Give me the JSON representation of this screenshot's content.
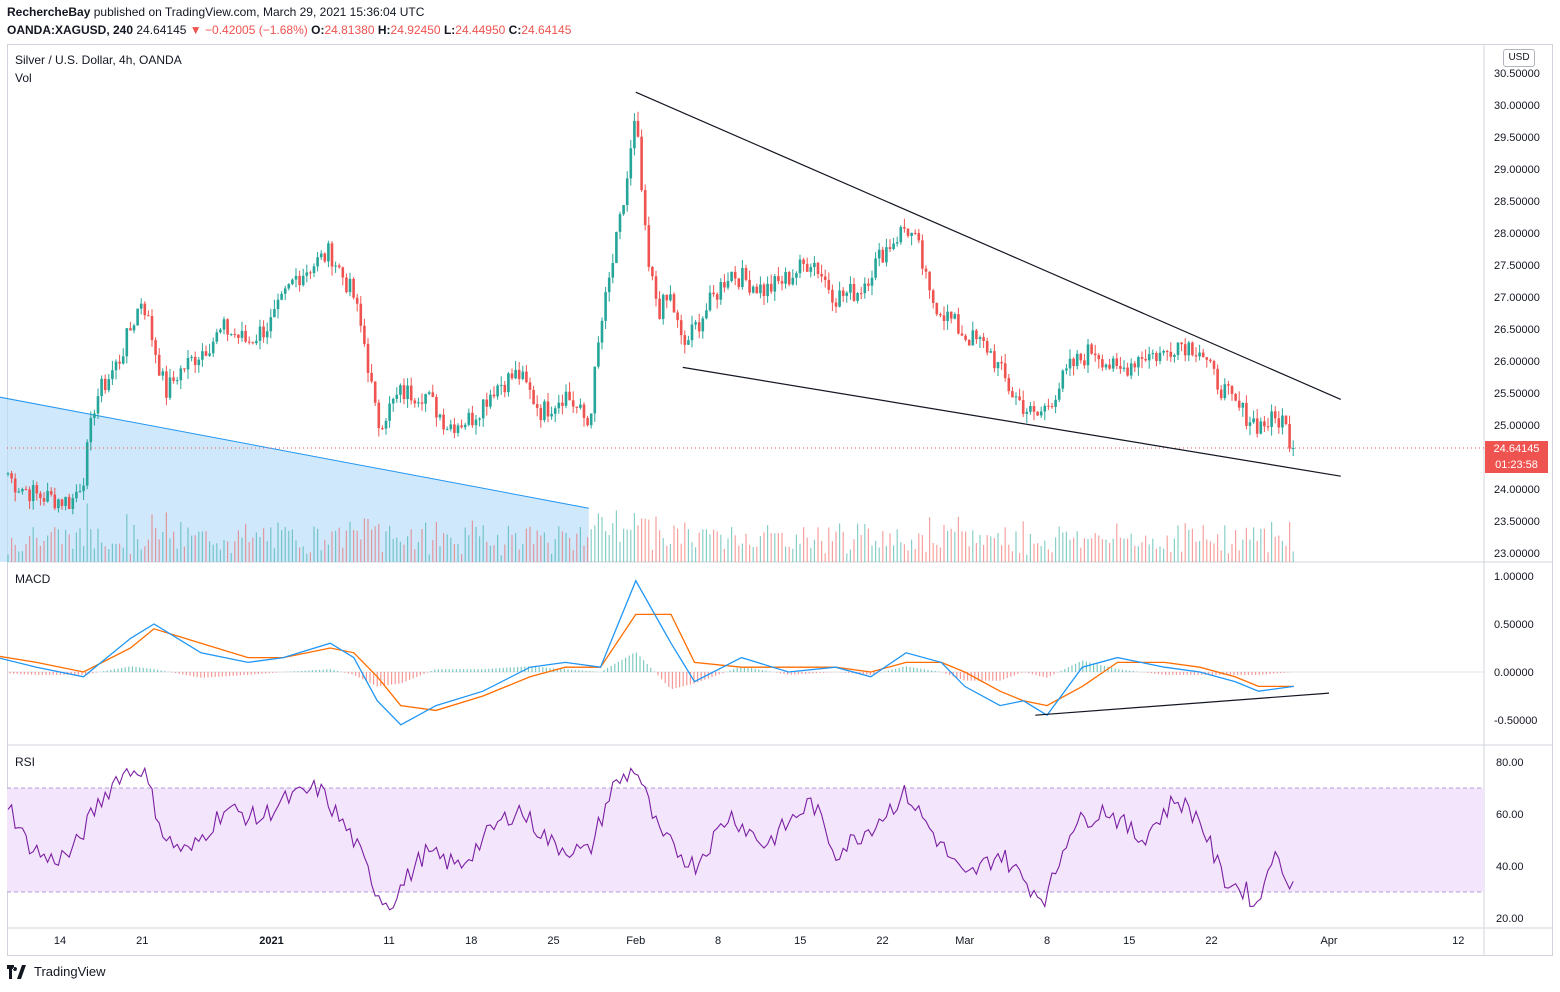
{
  "header": {
    "publisher": "RechercheBay",
    "published_text": "published on TradingView.com, March 29, 2021 15:36:04 UTC",
    "symbol": "OANDA:XAGUSD, 240",
    "last": "24.64145",
    "change": "−0.42005 (−1.68%)",
    "o_label": "O:",
    "o_value": "24.81380",
    "h_label": "H:",
    "h_value": "24.92450",
    "l_label": "L:",
    "l_value": "24.44950",
    "c_label": "C:",
    "c_value": "24.64145"
  },
  "panes": {
    "main_title": "Silver / U.S. Dollar, 4h, OANDA",
    "vol_label": "Vol",
    "macd_label": "MACD",
    "rsi_label": "RSI"
  },
  "currency_button": "USD",
  "price_tag": {
    "price": "24.64145",
    "countdown": "01:23:58"
  },
  "footer": {
    "brand": "TradingView"
  },
  "colors": {
    "up": "#26a69a",
    "down": "#ef5350",
    "macd": "#2196f3",
    "signal": "#ff6d00",
    "rsi": "#7b1fa2",
    "rsi_band": "#f3e5fc",
    "wedge_fill": "#bbdefb",
    "wedge_line": "#2196f3"
  },
  "chart_data": [
    {
      "type": "candlestick",
      "title": "Silver / U.S. Dollar, 4h, OANDA",
      "x_ticks": [
        "14",
        "21",
        "2021",
        "11",
        "18",
        "25",
        "Feb",
        "8",
        "15",
        "22",
        "Mar",
        "8",
        "15",
        "22",
        "Apr",
        "12"
      ],
      "y_ticks": [
        "30.50000",
        "30.00000",
        "29.50000",
        "29.00000",
        "28.50000",
        "28.00000",
        "27.50000",
        "27.00000",
        "26.50000",
        "26.00000",
        "25.50000",
        "25.00000",
        "24.50000",
        "24.00000",
        "23.50000",
        "23.00000"
      ],
      "ylim": [
        22.87,
        30.57
      ],
      "price_path": [
        [
          "Dec 7",
          24.3
        ],
        [
          "Dec 8",
          24.8
        ],
        [
          "Dec 10",
          24.1
        ],
        [
          "Dec 12",
          23.9
        ],
        [
          "Dec 15",
          23.8
        ],
        [
          "Dec 16",
          24.2
        ],
        [
          "Dec 17",
          25.4
        ],
        [
          "Dec 19",
          26.0
        ],
        [
          "Dec 21",
          27.0
        ],
        [
          "Dec 23",
          25.5
        ],
        [
          "Dec 24",
          25.8
        ],
        [
          "Dec 28",
          26.5
        ],
        [
          "Dec 30",
          26.3
        ],
        [
          "Jan 1",
          26.6
        ],
        [
          "Jan 3",
          27.3
        ],
        [
          "Jan 6",
          27.7
        ],
        [
          "Jan 8",
          27.0
        ],
        [
          "Jan 9",
          26.2
        ],
        [
          "Jan 10",
          25.0
        ],
        [
          "Jan 12",
          25.5
        ],
        [
          "Jan 14",
          25.5
        ],
        [
          "Jan 16",
          25.0
        ],
        [
          "Jan 18",
          25.1
        ],
        [
          "Jan 20",
          25.6
        ],
        [
          "Jan 22",
          25.8
        ],
        [
          "Jan 24",
          25.2
        ],
        [
          "Jan 26",
          25.5
        ],
        [
          "Jan 28",
          25.0
        ],
        [
          "Jan 29",
          26.5
        ],
        [
          "Jan 31",
          28.5
        ],
        [
          "Feb 1",
          29.8
        ],
        [
          "Feb 2",
          27.5
        ],
        [
          "Feb 3",
          26.8
        ],
        [
          "Feb 4",
          27.0
        ],
        [
          "Feb 5",
          26.2
        ],
        [
          "Feb 7",
          26.8
        ],
        [
          "Feb 9",
          27.4
        ],
        [
          "Feb 10",
          27.3
        ],
        [
          "Feb 12",
          27.1
        ],
        [
          "Feb 14",
          27.3
        ],
        [
          "Feb 16",
          27.6
        ],
        [
          "Feb 18",
          27.0
        ],
        [
          "Feb 20",
          27.1
        ],
        [
          "Feb 22",
          27.7
        ],
        [
          "Feb 24",
          28.1
        ],
        [
          "Feb 25",
          27.8
        ],
        [
          "Feb 26",
          27.0
        ],
        [
          "Feb 28",
          26.6
        ],
        [
          "Mar 1",
          26.4
        ],
        [
          "Mar 3",
          26.2
        ],
        [
          "Mar 5",
          25.5
        ],
        [
          "Mar 7",
          25.1
        ],
        [
          "Mar 8",
          25.3
        ],
        [
          "Mar 10",
          25.9
        ],
        [
          "Mar 12",
          26.2
        ],
        [
          "Mar 14",
          25.8
        ],
        [
          "Mar 16",
          26.1
        ],
        [
          "Mar 18",
          26.1
        ],
        [
          "Mar 19",
          26.3
        ],
        [
          "Mar 21",
          26.2
        ],
        [
          "Mar 22",
          25.8
        ],
        [
          "Mar 24",
          25.3
        ],
        [
          "Mar 26",
          25.0
        ],
        [
          "Mar 28",
          25.1
        ],
        [
          "Mar 29",
          24.64
        ]
      ],
      "last_price": 24.64145,
      "trendlines": [
        {
          "name": "upper wedge",
          "from": [
            "Feb 1",
            30.2
          ],
          "to": [
            "Apr 2",
            25.4
          ]
        },
        {
          "name": "lower wedge",
          "from": [
            "Feb 5",
            25.9
          ],
          "to": [
            "Apr 2",
            24.2
          ]
        },
        {
          "name": "prior resistance",
          "from": [
            "Dec 7",
            25.5
          ],
          "to": [
            "Jan 28",
            23.7
          ]
        }
      ]
    },
    {
      "type": "line",
      "title": "MACD",
      "y_ticks": [
        "1.00000",
        "0.50000",
        "0.00000",
        "-0.50000"
      ],
      "ylim": [
        -0.62,
        1.08
      ],
      "series": [
        {
          "values": [
            [
              "Dec 7",
              0.2
            ],
            [
              "Dec 12",
              0.05
            ],
            [
              "Dec 16",
              -0.05
            ],
            [
              "Dec 20",
              0.35
            ],
            [
              "Dec 22",
              0.5
            ],
            [
              "Dec 26",
              0.2
            ],
            [
              "Dec 30",
              0.1
            ],
            [
              "Jan 2",
              0.15
            ],
            [
              "Jan 6",
              0.3
            ],
            [
              "Jan 8",
              0.15
            ],
            [
              "Jan 10",
              -0.3
            ],
            [
              "Jan 12",
              -0.55
            ],
            [
              "Jan 15",
              -0.35
            ],
            [
              "Jan 19",
              -0.2
            ],
            [
              "Jan 23",
              0.05
            ],
            [
              "Jan 26",
              0.1
            ],
            [
              "Jan 29",
              0.05
            ],
            [
              "Feb 1",
              0.95
            ],
            [
              "Feb 4",
              0.3
            ],
            [
              "Feb 6",
              -0.1
            ],
            [
              "Feb 10",
              0.15
            ],
            [
              "Feb 14",
              0.0
            ],
            [
              "Feb 18",
              0.05
            ],
            [
              "Feb 21",
              -0.05
            ],
            [
              "Feb 24",
              0.2
            ],
            [
              "Feb 27",
              0.1
            ],
            [
              "Mar 1",
              -0.15
            ],
            [
              "Mar 4",
              -0.35
            ],
            [
              "Mar 6",
              -0.3
            ],
            [
              "Mar 8",
              -0.45
            ],
            [
              "Mar 11",
              0.05
            ],
            [
              "Mar 14",
              0.15
            ],
            [
              "Mar 18",
              0.05
            ],
            [
              "Mar 21",
              0.0
            ],
            [
              "Mar 24",
              -0.1
            ],
            [
              "Mar 26",
              -0.2
            ],
            [
              "Mar 29",
              -0.15
            ]
          ]
        },
        {
          "values": [
            [
              "Dec 7",
              0.2
            ],
            [
              "Dec 12",
              0.1
            ],
            [
              "Dec 16",
              0.0
            ],
            [
              "Dec 20",
              0.25
            ],
            [
              "Dec 22",
              0.45
            ],
            [
              "Dec 26",
              0.3
            ],
            [
              "Dec 30",
              0.15
            ],
            [
              "Jan 2",
              0.15
            ],
            [
              "Jan 6",
              0.25
            ],
            [
              "Jan 8",
              0.2
            ],
            [
              "Jan 10",
              -0.05
            ],
            [
              "Jan 12",
              -0.35
            ],
            [
              "Jan 15",
              -0.4
            ],
            [
              "Jan 19",
              -0.25
            ],
            [
              "Jan 23",
              -0.05
            ],
            [
              "Jan 26",
              0.05
            ],
            [
              "Jan 29",
              0.05
            ],
            [
              "Feb 1",
              0.6
            ],
            [
              "Feb 4",
              0.6
            ],
            [
              "Feb 6",
              0.1
            ],
            [
              "Feb 10",
              0.05
            ],
            [
              "Feb 14",
              0.05
            ],
            [
              "Feb 18",
              0.05
            ],
            [
              "Feb 21",
              0.0
            ],
            [
              "Feb 24",
              0.1
            ],
            [
              "Feb 27",
              0.1
            ],
            [
              "Mar 1",
              0.0
            ],
            [
              "Mar 4",
              -0.2
            ],
            [
              "Mar 6",
              -0.3
            ],
            [
              "Mar 8",
              -0.35
            ],
            [
              "Mar 11",
              -0.15
            ],
            [
              "Mar 14",
              0.1
            ],
            [
              "Mar 18",
              0.1
            ],
            [
              "Mar 21",
              0.05
            ],
            [
              "Mar 24",
              -0.05
            ],
            [
              "Mar 26",
              -0.15
            ],
            [
              "Mar 29",
              -0.15
            ]
          ]
        }
      ],
      "trendline": {
        "from": [
          "Mar 7",
          -0.45
        ],
        "to": [
          "Apr 1",
          -0.22
        ]
      }
    },
    {
      "type": "line",
      "title": "RSI",
      "y_ticks": [
        "80.00",
        "60.00",
        "40.00",
        "20.00"
      ],
      "ylim": [
        15.1,
        83.3
      ],
      "band": [
        30,
        70
      ],
      "series": [
        {
          "values": [
            [
              "Dec 7",
              58
            ],
            [
              "Dec 9",
              70
            ],
            [
              "Dec 11",
              50
            ],
            [
              "Dec 13",
              42
            ],
            [
              "Dec 15",
              45
            ],
            [
              "Dec 17",
              62
            ],
            [
              "Dec 19",
              75
            ],
            [
              "Dec 21",
              78
            ],
            [
              "Dec 23",
              50
            ],
            [
              "Dec 25",
              45
            ],
            [
              "Dec 28",
              62
            ],
            [
              "Dec 31",
              58
            ],
            [
              "Jan 2",
              65
            ],
            [
              "Jan 5",
              70
            ],
            [
              "Jan 8",
              50
            ],
            [
              "Jan 10",
              30
            ],
            [
              "Jan 11",
              25
            ],
            [
              "Jan 14",
              45
            ],
            [
              "Jan 17",
              40
            ],
            [
              "Jan 20",
              55
            ],
            [
              "Jan 22",
              62
            ],
            [
              "Jan 25",
              48
            ],
            [
              "Jan 28",
              45
            ],
            [
              "Jan 30",
              70
            ],
            [
              "Feb 1",
              78
            ],
            [
              "Feb 3",
              52
            ],
            [
              "Feb 6",
              40
            ],
            [
              "Feb 9",
              60
            ],
            [
              "Feb 12",
              48
            ],
            [
              "Feb 16",
              65
            ],
            [
              "Feb 18",
              45
            ],
            [
              "Feb 21",
              55
            ],
            [
              "Feb 24",
              68
            ],
            [
              "Feb 27",
              48
            ],
            [
              "Mar 1",
              35
            ],
            [
              "Mar 4",
              45
            ],
            [
              "Mar 7",
              30
            ],
            [
              "Mar 8",
              28
            ],
            [
              "Mar 10",
              55
            ],
            [
              "Mar 13",
              62
            ],
            [
              "Mar 16",
              50
            ],
            [
              "Mar 19",
              66
            ],
            [
              "Mar 21",
              58
            ],
            [
              "Mar 23",
              35
            ],
            [
              "Mar 25",
              30
            ],
            [
              "Mar 26",
              24
            ],
            [
              "Mar 27",
              45
            ],
            [
              "Mar 29",
              33
            ]
          ]
        }
      ]
    }
  ]
}
